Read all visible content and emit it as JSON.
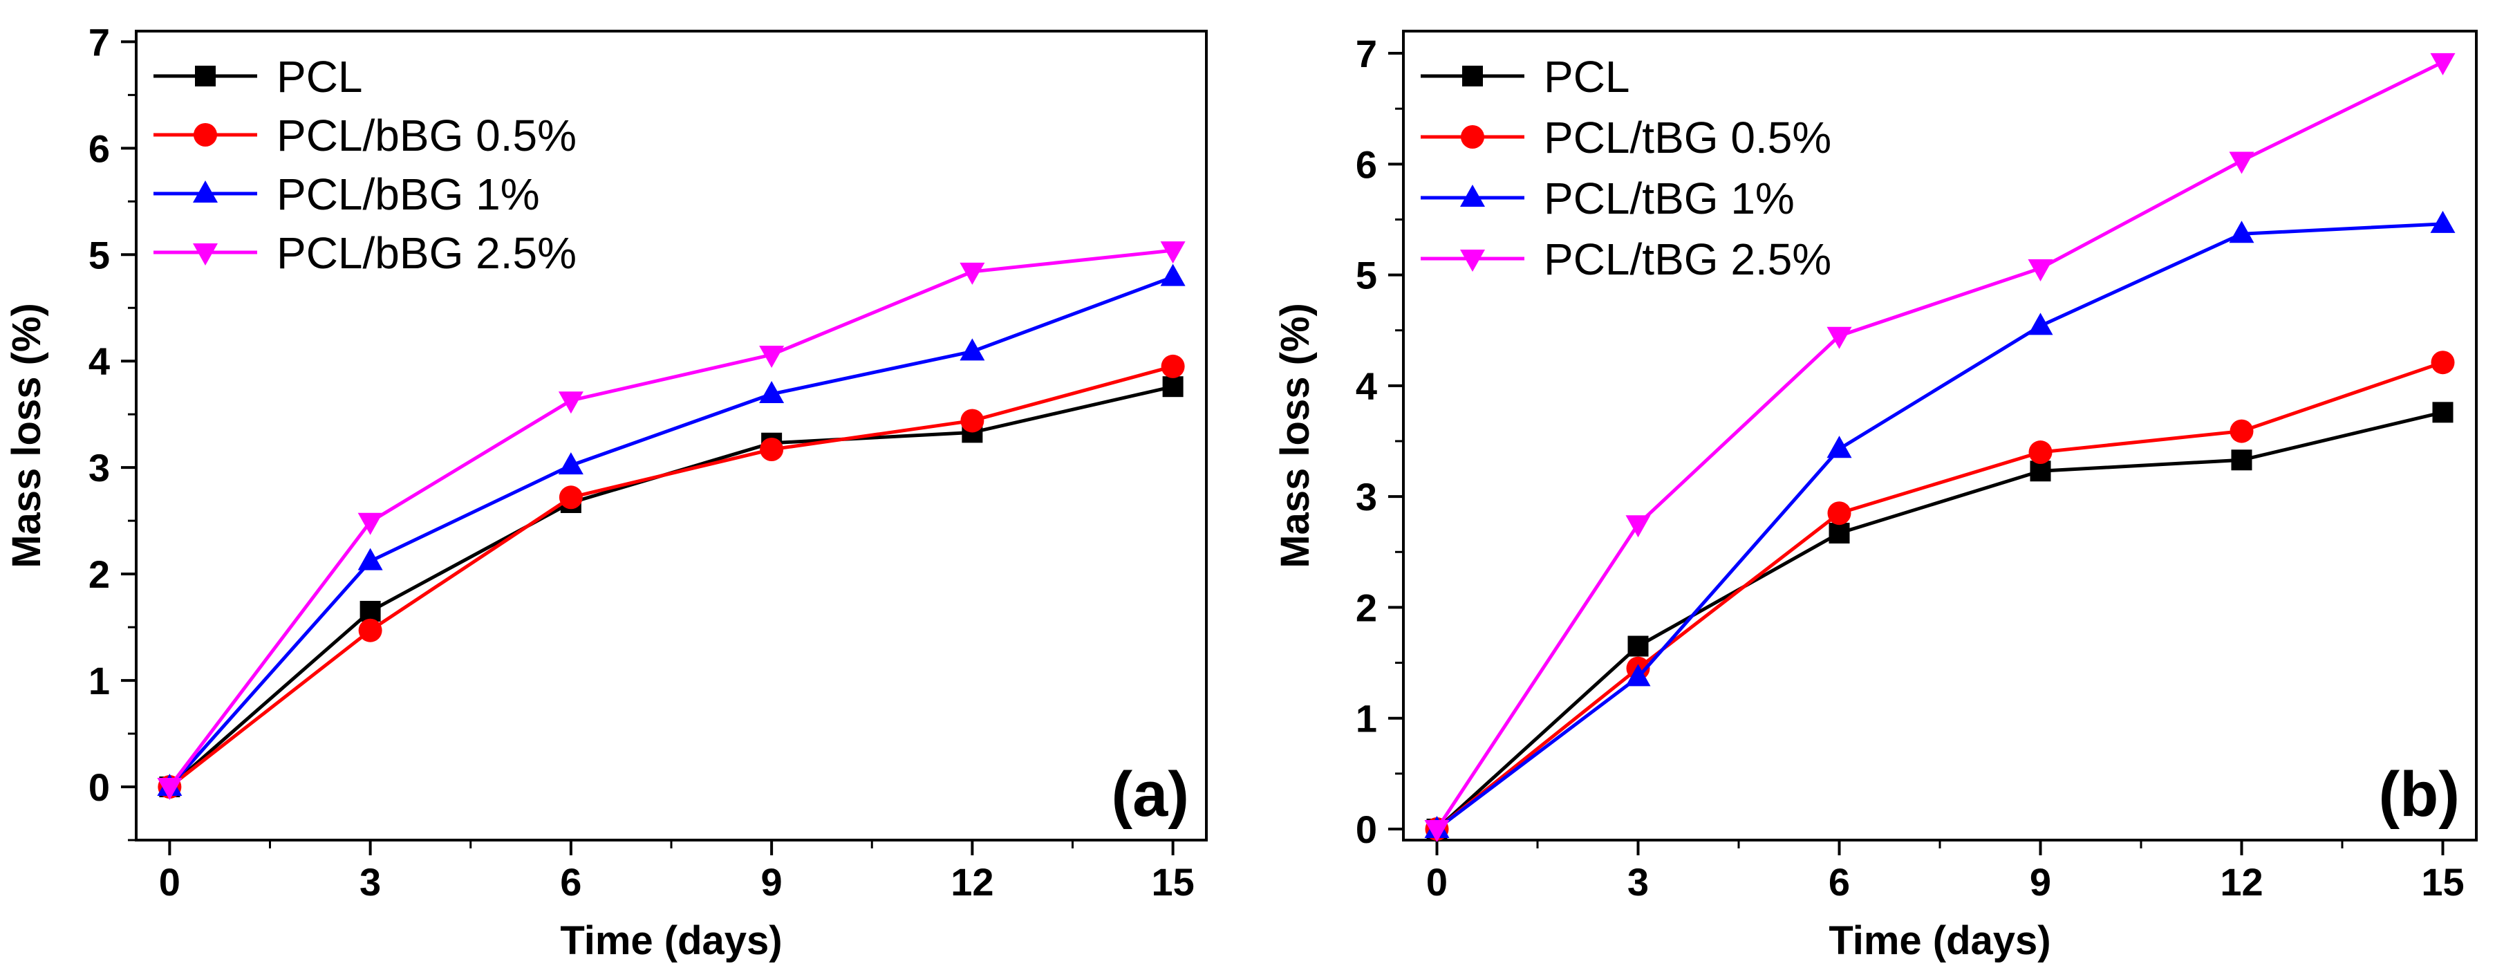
{
  "chart_data": [
    {
      "type": "line",
      "panel_label": "(a)",
      "xlabel": "Time (days)",
      "ylabel": "Mass loss (%)",
      "x": [
        0,
        3,
        6,
        9,
        12,
        15
      ],
      "xticks": [
        "0",
        "3",
        "6",
        "9",
        "12",
        "15"
      ],
      "yticks": [
        "0",
        "1",
        "2",
        "3",
        "4",
        "5",
        "6",
        "7"
      ],
      "xlim": [
        -0.5,
        15.5
      ],
      "ylim": [
        -0.5,
        7.1
      ],
      "grid": false,
      "legend_position": "top-left",
      "series": [
        {
          "name": "PCL",
          "color": "#000000",
          "marker": "square",
          "values": [
            0,
            1.65,
            2.67,
            3.23,
            3.33,
            3.76
          ]
        },
        {
          "name": "PCL/bBG 0.5%",
          "color": "#ff0000",
          "marker": "circle",
          "values": [
            0,
            1.47,
            2.72,
            3.17,
            3.44,
            3.95
          ]
        },
        {
          "name": "PCL/bBG 1%",
          "color": "#0000ff",
          "marker": "triangle-up",
          "values": [
            0,
            2.12,
            3.02,
            3.69,
            4.09,
            4.79
          ]
        },
        {
          "name": "PCL/bBG 2.5%",
          "color": "#ff00ff",
          "marker": "triangle-down",
          "values": [
            0,
            2.49,
            3.63,
            4.06,
            4.84,
            5.04
          ]
        }
      ]
    },
    {
      "type": "line",
      "panel_label": "(b)",
      "xlabel": "Time (days)",
      "ylabel": "Mass loss (%)",
      "x": [
        0,
        3,
        6,
        9,
        12,
        15
      ],
      "xticks": [
        "0",
        "3",
        "6",
        "9",
        "12",
        "15"
      ],
      "yticks": [
        "0",
        "1",
        "2",
        "3",
        "4",
        "5",
        "6",
        "7"
      ],
      "xlim": [
        -0.5,
        15.5
      ],
      "ylim": [
        -0.1,
        7.2
      ],
      "grid": false,
      "legend_position": "top-left",
      "series": [
        {
          "name": "PCL",
          "color": "#000000",
          "marker": "square",
          "values": [
            0,
            1.65,
            2.67,
            3.23,
            3.33,
            3.76
          ]
        },
        {
          "name": "PCL/tBG 0.5%",
          "color": "#ff0000",
          "marker": "circle",
          "values": [
            0,
            1.45,
            2.85,
            3.4,
            3.59,
            4.21
          ]
        },
        {
          "name": "PCL/tBG 1%",
          "color": "#0000ff",
          "marker": "triangle-up",
          "values": [
            0,
            1.37,
            3.43,
            4.54,
            5.37,
            5.46
          ]
        },
        {
          "name": "PCL/tBG 2.5%",
          "color": "#ff00ff",
          "marker": "triangle-down",
          "values": [
            0,
            2.75,
            4.45,
            5.06,
            6.03,
            6.92
          ]
        }
      ]
    }
  ]
}
